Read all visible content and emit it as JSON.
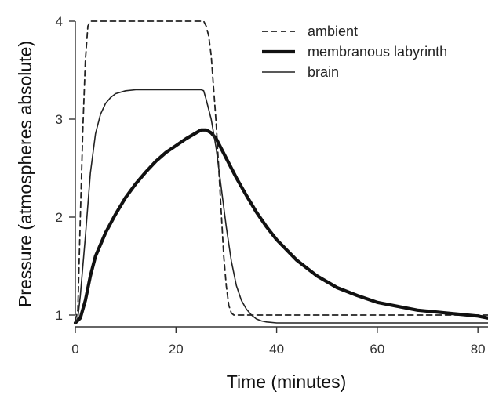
{
  "chart_data": {
    "type": "line",
    "title": "",
    "xlabel": "Time (minutes)",
    "ylabel": "Pressure (atmospheres absolute)",
    "xlim": [
      0,
      82
    ],
    "ylim": [
      0.88,
      4.12
    ],
    "xticks": [
      0,
      20,
      40,
      60,
      80
    ],
    "yticks": [
      1,
      2,
      3,
      4
    ],
    "xtick_labels": [
      "0",
      "20",
      "40",
      "60",
      "80"
    ],
    "ytick_labels": [
      "1",
      "2",
      "3",
      "4"
    ],
    "grid": false,
    "legend_position": "top-right",
    "series": [
      {
        "name": "ambient",
        "style": "dashed",
        "color": "#222222",
        "x": [
          0,
          0.5,
          1,
          1.5,
          2,
          2.5,
          3,
          25.5,
          26,
          26.5,
          27,
          27.5,
          28,
          28.5,
          29,
          29.5,
          30,
          30.5,
          31,
          31.5,
          82
        ],
        "y": [
          0.95,
          1.05,
          2.0,
          2.9,
          3.6,
          3.95,
          4.0,
          4.0,
          3.95,
          3.85,
          3.65,
          3.3,
          2.95,
          2.5,
          2.05,
          1.6,
          1.3,
          1.1,
          1.02,
          1.0,
          1.0
        ]
      },
      {
        "name": "membranous labyrinth",
        "style": "thick",
        "color": "#111111",
        "x": [
          0,
          1,
          2,
          3,
          4,
          5,
          6,
          8,
          10,
          12,
          14,
          16,
          18,
          20,
          22,
          24,
          25,
          26,
          27,
          28,
          29,
          30,
          32,
          34,
          36,
          38,
          40,
          44,
          48,
          52,
          56,
          60,
          64,
          68,
          72,
          76,
          80,
          82
        ],
        "y": [
          0.92,
          0.97,
          1.15,
          1.4,
          1.6,
          1.72,
          1.84,
          2.03,
          2.2,
          2.34,
          2.46,
          2.57,
          2.66,
          2.73,
          2.8,
          2.86,
          2.89,
          2.89,
          2.86,
          2.8,
          2.7,
          2.6,
          2.4,
          2.22,
          2.05,
          1.9,
          1.77,
          1.56,
          1.4,
          1.28,
          1.2,
          1.13,
          1.09,
          1.05,
          1.03,
          1.01,
          0.99,
          0.97
        ]
      },
      {
        "name": "brain",
        "style": "thin",
        "color": "#222222",
        "x": [
          0,
          0.5,
          1,
          2,
          3,
          4,
          5,
          6,
          7,
          8,
          10,
          12,
          20,
          25,
          25.5,
          26,
          27,
          28,
          29,
          30,
          31,
          32,
          33,
          34,
          35,
          36,
          37,
          38,
          40,
          82
        ],
        "y": [
          0.92,
          0.97,
          1.2,
          1.8,
          2.45,
          2.85,
          3.05,
          3.16,
          3.22,
          3.26,
          3.29,
          3.3,
          3.3,
          3.3,
          3.29,
          3.2,
          3.0,
          2.7,
          2.3,
          1.9,
          1.55,
          1.3,
          1.15,
          1.06,
          1.0,
          0.96,
          0.94,
          0.93,
          0.92,
          0.92
        ]
      }
    ]
  }
}
